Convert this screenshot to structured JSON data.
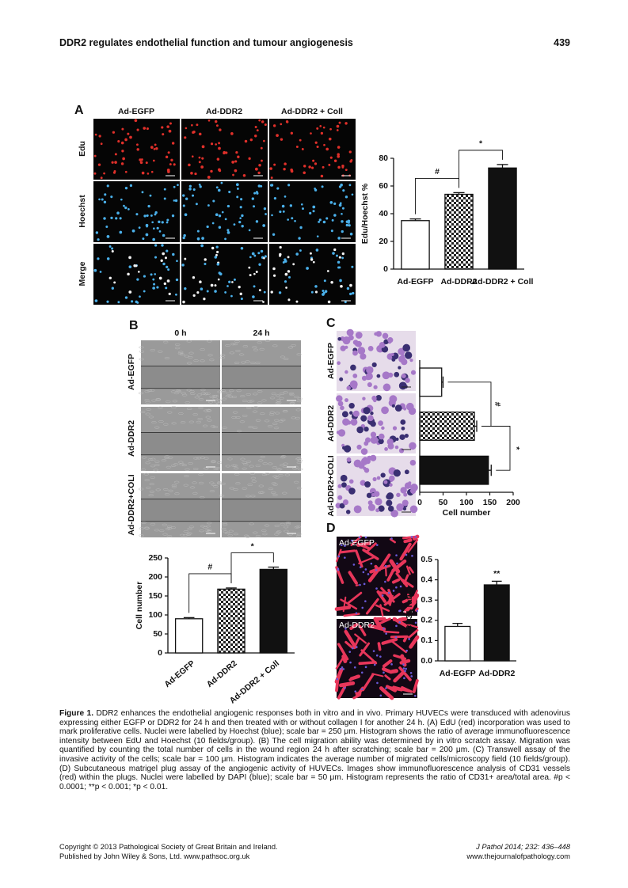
{
  "header": {
    "title": "DDR2 regulates endothelial function and tumour angiogenesis",
    "page": 439
  },
  "figure": {
    "panels": [
      {
        "label": "A",
        "columns": [
          "Ad-EGFP",
          "Ad-DDR2",
          "Ad-DDR2 + Coll"
        ],
        "rows": [
          "Edu",
          "Hoechst",
          "Merge"
        ]
      },
      {
        "label": "B",
        "columns": [
          "0 h",
          "24 h"
        ],
        "rows": [
          "Ad-EGFP",
          "Ad-DDR2",
          "Ad-DDR2+COLI"
        ]
      },
      {
        "label": "C",
        "rows": [
          "Ad-EGFP",
          "Ad-DDR2",
          "Ad-DDR2+COLI"
        ]
      },
      {
        "label": "D",
        "rows": [
          "Ad-EGFP",
          "Ad-DDR2"
        ]
      }
    ]
  },
  "chart_data": [
    {
      "type": "bar",
      "ylabel": "Edu/Hoechst %",
      "categories": [
        "Ad-EGFP",
        "Ad-DDR2",
        "Ad-DDR2 + Coll"
      ],
      "values": [
        35,
        54,
        73
      ],
      "errors": [
        1.2,
        1.2,
        2.5
      ],
      "colors": [
        "#ffffff",
        "#ffffff",
        "#111111"
      ],
      "hatch": [
        false,
        true,
        false
      ],
      "ylim": [
        0,
        80
      ],
      "yticks": [
        0,
        20,
        40,
        60,
        80
      ],
      "comparisons": [
        "#",
        "*"
      ]
    },
    {
      "type": "bar",
      "ylabel": "Cell number",
      "categories": [
        "Ad-EGFP",
        "Ad-DDR2",
        "Ad-DDR2 + Coll"
      ],
      "values": [
        90,
        168,
        220
      ],
      "errors": [
        3,
        3,
        6
      ],
      "colors": [
        "#ffffff",
        "#ffffff",
        "#111111"
      ],
      "hatch": [
        false,
        true,
        false
      ],
      "ylim": [
        0,
        250
      ],
      "yticks": [
        0,
        50,
        100,
        150,
        200,
        250
      ],
      "comparisons": [
        "#",
        "*"
      ]
    },
    {
      "type": "bar",
      "orientation": "horizontal",
      "xlabel": "Cell number",
      "values": [
        47,
        117,
        147
      ],
      "errors": [
        3,
        5,
        6
      ],
      "colors": [
        "#ffffff",
        "#ffffff",
        "#111111"
      ],
      "hatch": [
        false,
        true,
        false
      ],
      "xlim": [
        0,
        200
      ],
      "xticks": [
        0,
        50,
        100,
        150,
        200
      ],
      "comparisons": [
        "#",
        "*"
      ]
    },
    {
      "type": "bar",
      "ylabel": "CD31 ratio",
      "categories": [
        "Ad-EGFP",
        "Ad-DDR2"
      ],
      "values": [
        0.17,
        0.375
      ],
      "errors": [
        0.015,
        0.018
      ],
      "colors": [
        "#ffffff",
        "#111111"
      ],
      "hatch": [
        false,
        false
      ],
      "ylim": [
        0,
        0.5
      ],
      "yticks": [
        {
          "value": 0,
          "label": "0.0"
        },
        0.1,
        0.2,
        0.3,
        0.4,
        0.5
      ],
      "significance": [
        null,
        "**"
      ]
    }
  ],
  "caption": {
    "label": "Figure 1.",
    "text": "DDR2 enhances the endothelial angiogenic responses both in vitro and in vivo. Primary HUVECs were transduced with adenovirus expressing either EGFP or DDR2 for 24 h and then treated with or without collagen I for another 24 h. (A) EdU (red) incorporation was used to mark proliferative cells. Nuclei were labelled by Hoechst (blue); scale bar = 250 μm. Histogram shows the ratio of average immunofluorescence intensity between EdU and Hoechst (10 fields/group). (B) The cell migration ability was determined by in vitro scratch assay. Migration was quantified by counting the total number of cells in the wound region 24 h after scratching; scale bar = 200 μm. (C) Transwell assay of the invasive activity of the cells; scale bar = 100 μm. Histogram indicates the average number of migrated cells/microscopy field (10 fields/group). (D) Subcutaneous matrigel plug assay of the angiogenic activity of HUVECs. Images show immunofluorescence analysis of CD31 vessels (red) within the plugs. Nuclei were labelled by DAPI (blue); scale bar = 50 μm. Histogram represents the ratio of CD31+ area/total area. #p < 0.0001; **p < 0.001; *p < 0.01."
  },
  "footer": {
    "copyright": "Copyright © 2013 Pathological Society of Great Britain and Ireland.",
    "publisher": "Published by John Wiley & Sons, Ltd. www.pathsoc.org.uk",
    "citation": "J Pathol 2014; 232: 436–448",
    "website": "www.thejournalofpathology.com"
  }
}
